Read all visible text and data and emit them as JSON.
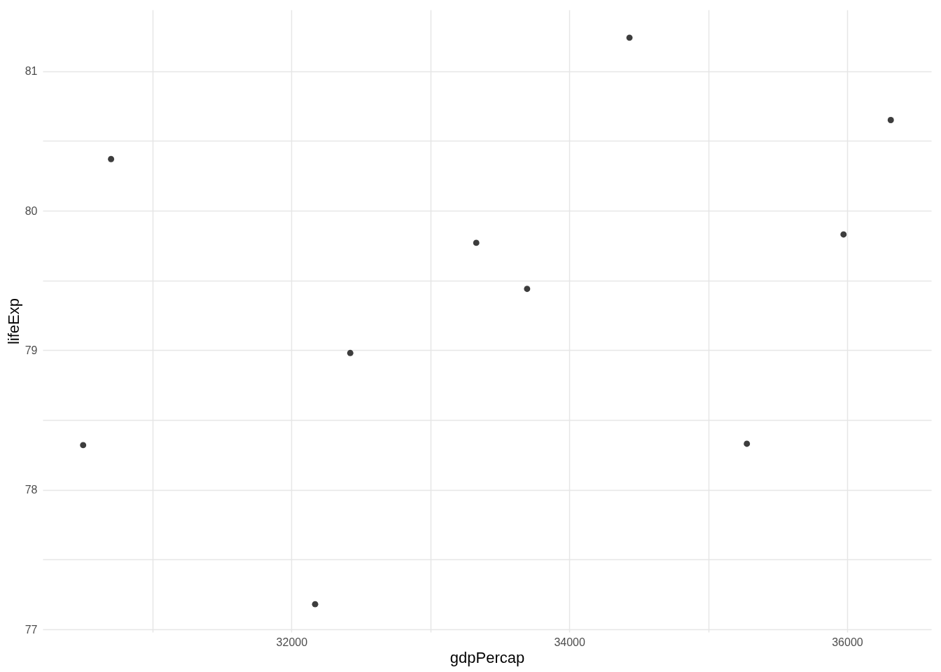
{
  "chart_data": {
    "type": "scatter",
    "xlabel": "gdpPercap",
    "ylabel": "lifeExp",
    "x": [
      30500,
      30701,
      32170,
      32423,
      33330,
      33696,
      34433,
      35278,
      35974,
      36314
    ],
    "series": [
      {
        "color": "#3d3d3d",
        "values": [
          78.32,
          80.37,
          77.18,
          78.98,
          79.77,
          79.44,
          81.24,
          78.33,
          79.83,
          80.65
        ]
      }
    ],
    "xlim": [
      30209,
      36605
    ],
    "ylim": [
      76.98,
      81.44
    ],
    "xticks": [
      {
        "value": 31000,
        "label": null
      },
      32000,
      {
        "value": 33000,
        "label": null
      },
      34000,
      {
        "value": 35000,
        "label": null
      },
      36000
    ],
    "yticks": [
      77,
      {
        "value": 77.5,
        "label": null
      },
      78,
      {
        "value": 78.5,
        "label": null
      },
      79,
      {
        "value": 79.5,
        "label": null
      },
      80,
      {
        "value": 80.5,
        "label": null
      },
      81
    ],
    "grid": true,
    "marker": "circle"
  }
}
